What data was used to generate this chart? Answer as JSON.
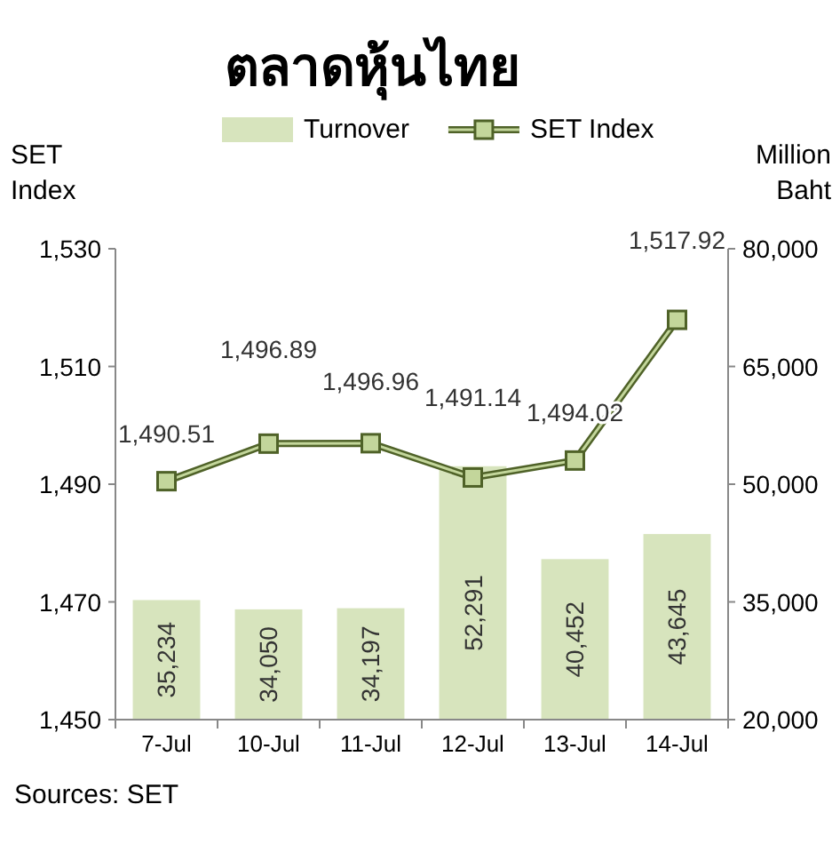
{
  "chart_data": {
    "type": "bar",
    "title": "ตลาดหุ้นไทย",
    "categories": [
      "7-Jul",
      "10-Jul",
      "11-Jul",
      "12-Jul",
      "13-Jul",
      "14-Jul"
    ],
    "series": [
      {
        "name": "Turnover",
        "axis": "y2",
        "color": "#d7e4bd",
        "values": [
          35234,
          34050,
          34197,
          52291,
          40452,
          43645
        ],
        "value_labels": [
          "35,234",
          "34,050",
          "34,197",
          "52,291",
          "40,452",
          "43,645"
        ]
      },
      {
        "name": "SET Index",
        "type": "line",
        "axis": "y",
        "color": "#4f6228",
        "marker": "square",
        "values": [
          1490.51,
          1496.89,
          1496.96,
          1491.14,
          1494.02,
          1517.92
        ],
        "value_labels": [
          "1,490.51",
          "1,496.89",
          "1,496.96",
          "1,491.14",
          "1,494.02",
          "1,517.92"
        ]
      }
    ],
    "ylabel": "SET Index",
    "y2label": "Million Baht",
    "ylim": [
      1450,
      1530
    ],
    "yticks": [
      {
        "value": 1450,
        "label": "1,450"
      },
      {
        "value": 1470,
        "label": "1,470"
      },
      {
        "value": 1490,
        "label": "1,490"
      },
      {
        "value": 1510,
        "label": "1,510"
      },
      {
        "value": 1530,
        "label": "1,530"
      }
    ],
    "y2lim": [
      20000,
      80000
    ],
    "y2ticks": [
      {
        "value": 20000,
        "label": "20,000"
      },
      {
        "value": 35000,
        "label": "35,000"
      },
      {
        "value": 50000,
        "label": "50,000"
      },
      {
        "value": 65000,
        "label": "65,000"
      },
      {
        "value": 80000,
        "label": "80,000"
      }
    ],
    "legend": "top",
    "grid": false,
    "annotations": [
      "Sources: SET"
    ]
  }
}
